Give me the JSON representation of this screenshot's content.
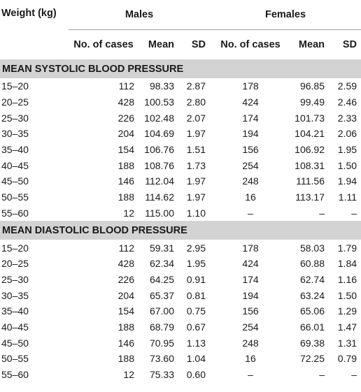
{
  "header": {
    "weight_label": "Weight (kg)",
    "males_label": "Males",
    "females_label": "Females",
    "cols": [
      "No. of cases",
      "Mean",
      "SD",
      "No. of cases",
      "Mean",
      "SD"
    ]
  },
  "sections": [
    {
      "title": "MEAN SYSTOLIC BLOOD PRESSURE",
      "rows": [
        [
          "15–20",
          "112",
          "98.33",
          "2.87",
          "178",
          "96.85",
          "2.59"
        ],
        [
          "20–25",
          "428",
          "100.53",
          "2.80",
          "424",
          "99.49",
          "2.46"
        ],
        [
          "25–30",
          "226",
          "102.48",
          "2.07",
          "174",
          "101.73",
          "2.33"
        ],
        [
          "30–35",
          "204",
          "104.69",
          "1.97",
          "194",
          "104.21",
          "2.06"
        ],
        [
          "35–40",
          "154",
          "106.76",
          "1.51",
          "156",
          "106.92",
          "1.95"
        ],
        [
          "40–45",
          "188",
          "108.76",
          "1.73",
          "254",
          "108.31",
          "1.50"
        ],
        [
          "45–50",
          "146",
          "112.04",
          "1.97",
          "248",
          "111.56",
          "1.94"
        ],
        [
          "50–55",
          "188",
          "114.62",
          "1.97",
          "16",
          "113.17",
          "1.11"
        ],
        [
          "55–60",
          "12",
          "115.00",
          "1.10",
          "–",
          "–",
          "–"
        ]
      ]
    },
    {
      "title": "MEAN DIASTOLIC BLOOD PRESSURE",
      "rows": [
        [
          "15–20",
          "112",
          "59.31",
          "2.95",
          "178",
          "58.03",
          "1.79"
        ],
        [
          "20–25",
          "428",
          "62.34",
          "1.95",
          "424",
          "60.88",
          "1.84"
        ],
        [
          "25–30",
          "226",
          "64.25",
          "0.91",
          "174",
          "62.74",
          "1.16"
        ],
        [
          "30–35",
          "204",
          "65.37",
          "0.81",
          "194",
          "63.24",
          "1.50"
        ],
        [
          "35–40",
          "154",
          "67.00",
          "0.75",
          "156",
          "65.06",
          "1.29"
        ],
        [
          "40–45",
          "188",
          "68.79",
          "0.67",
          "254",
          "66.01",
          "1.47"
        ],
        [
          "45–50",
          "146",
          "70.95",
          "1.13",
          "248",
          "69.38",
          "1.31"
        ],
        [
          "50–55",
          "188",
          "73.60",
          "1.04",
          "16",
          "72.25",
          "0.79"
        ],
        [
          "55–60",
          "12",
          "75.33",
          "0.60",
          "–",
          "–",
          "–"
        ]
      ]
    }
  ],
  "colors": {
    "section_bg": "#d3d3d3",
    "rule": "#9e9e9e",
    "text": "#1a1a1a"
  }
}
